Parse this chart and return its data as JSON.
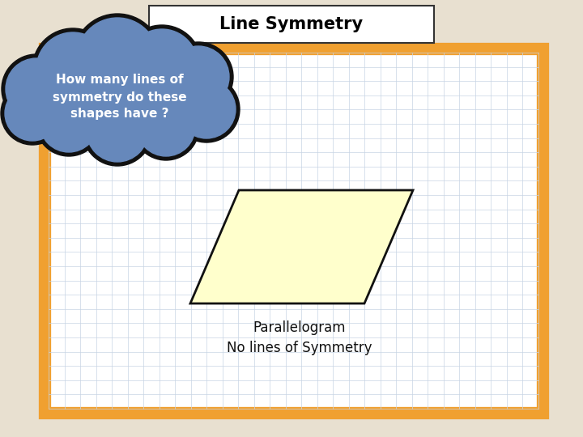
{
  "title": "Line Symmetry",
  "question_text": "How many lines of\nsymmetry do these\nshapes have ?",
  "shape_label_line1": "Parallelogram",
  "shape_label_line2": "No lines of Symmetry",
  "bg_outer": "#e8e0d0",
  "bg_inner": "#ffffff",
  "border_color": "#f0a030",
  "grid_color": "#c8d4e4",
  "title_box_color": "#ffffff",
  "title_font_color": "#000000",
  "cloud_fill": "#6688bb",
  "cloud_stroke": "#111111",
  "cloud_text_color": "#ffffff",
  "parallelogram_fill": "#ffffcc",
  "parallelogram_stroke": "#111111"
}
